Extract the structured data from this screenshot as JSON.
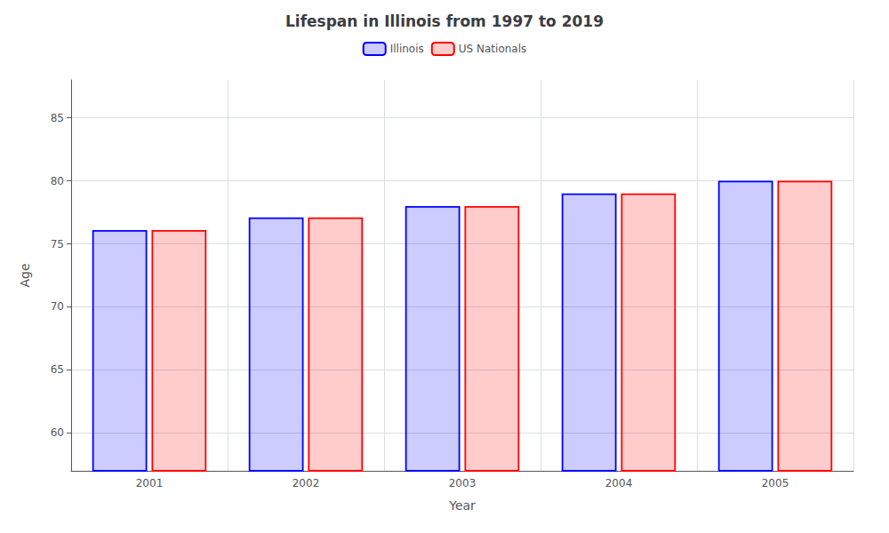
{
  "chart_data": {
    "type": "bar",
    "title": "Lifespan in Illinois from 1997 to 2019",
    "x_label": "Year",
    "y_label": "Age",
    "categories": [
      "2001",
      "2002",
      "2003",
      "2004",
      "2005"
    ],
    "series": [
      {
        "name": "Illinois",
        "color": "#0000ff",
        "values": [
          76.1,
          77.1,
          78.0,
          79.0,
          80.0
        ]
      },
      {
        "name": "US Nationals",
        "color": "#ff0000",
        "values": [
          76.1,
          77.1,
          78.0,
          79.0,
          80.0
        ]
      }
    ],
    "ylim": [
      57,
      88
    ],
    "yticks": [
      60,
      65,
      70,
      75,
      80,
      85
    ],
    "grid": true,
    "legend": "top"
  }
}
